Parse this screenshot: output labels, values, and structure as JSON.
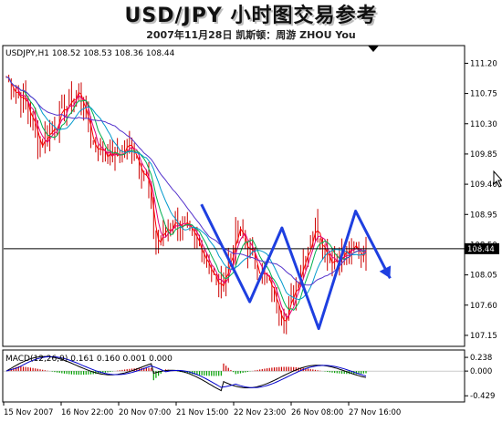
{
  "header": {
    "title": "USD/JPY 小时图交易参考",
    "subtitle": "2007年11月28日  凯斯顿：周游 ZHOU You"
  },
  "chart_data": [
    {
      "type": "candlestick",
      "symbol_info": "USDJPY,H1  108.52 108.53 108.36 108.44",
      "current_price": 108.44,
      "current_price_label": "108.44",
      "ylim": [
        107.0,
        111.45
      ],
      "y_ticks": [
        111.2,
        110.75,
        110.3,
        109.85,
        109.4,
        108.95,
        108.5,
        108.05,
        107.6,
        107.15
      ],
      "y_tick_labels": [
        "111.20",
        "110.75",
        "110.30",
        "109.85",
        "109.40",
        "108.95",
        "108.50",
        "108.05",
        "107.60",
        "107.15"
      ],
      "x_tick_labels": [
        "15 Nov 2007",
        "16 Nov 22:00",
        "20 Nov 07:00",
        "21 Nov 15:00",
        "22 Nov 23:00",
        "26 Nov 08:00",
        "27 Nov 16:00"
      ],
      "x_tick_fractions": [
        0.0,
        0.125,
        0.25,
        0.375,
        0.5,
        0.625,
        0.75
      ],
      "candle_color": "#cc0000",
      "moving_averages": [
        {
          "color": "#ff0000"
        },
        {
          "color": "#e0007a"
        },
        {
          "color": "#00b050"
        },
        {
          "color": "#0099cc"
        },
        {
          "color": "#5533cc"
        }
      ],
      "arrow_color": "#1e3fe0",
      "arrow_path": [
        {
          "x": 0.43,
          "y": 109.1
        },
        {
          "x": 0.535,
          "y": 107.65
        },
        {
          "x": 0.605,
          "y": 108.75
        },
        {
          "x": 0.685,
          "y": 107.25
        },
        {
          "x": 0.765,
          "y": 109.0
        },
        {
          "x": 0.84,
          "y": 108.0
        }
      ]
    },
    {
      "type": "macd",
      "info": "MACD(12,26,9) 0.161 0.160 0.001 0.000",
      "ylim": [
        -0.52,
        0.35
      ],
      "y_ticks": [
        0.238,
        0.0,
        -0.429
      ],
      "y_tick_labels": [
        "0.238",
        "0.000",
        "-0.429"
      ],
      "histogram_colors": {
        "positive": "#cc0000",
        "negative": "#00a000"
      },
      "line_colors": {
        "macd": "#000000",
        "signal": "#0000cc"
      }
    }
  ]
}
